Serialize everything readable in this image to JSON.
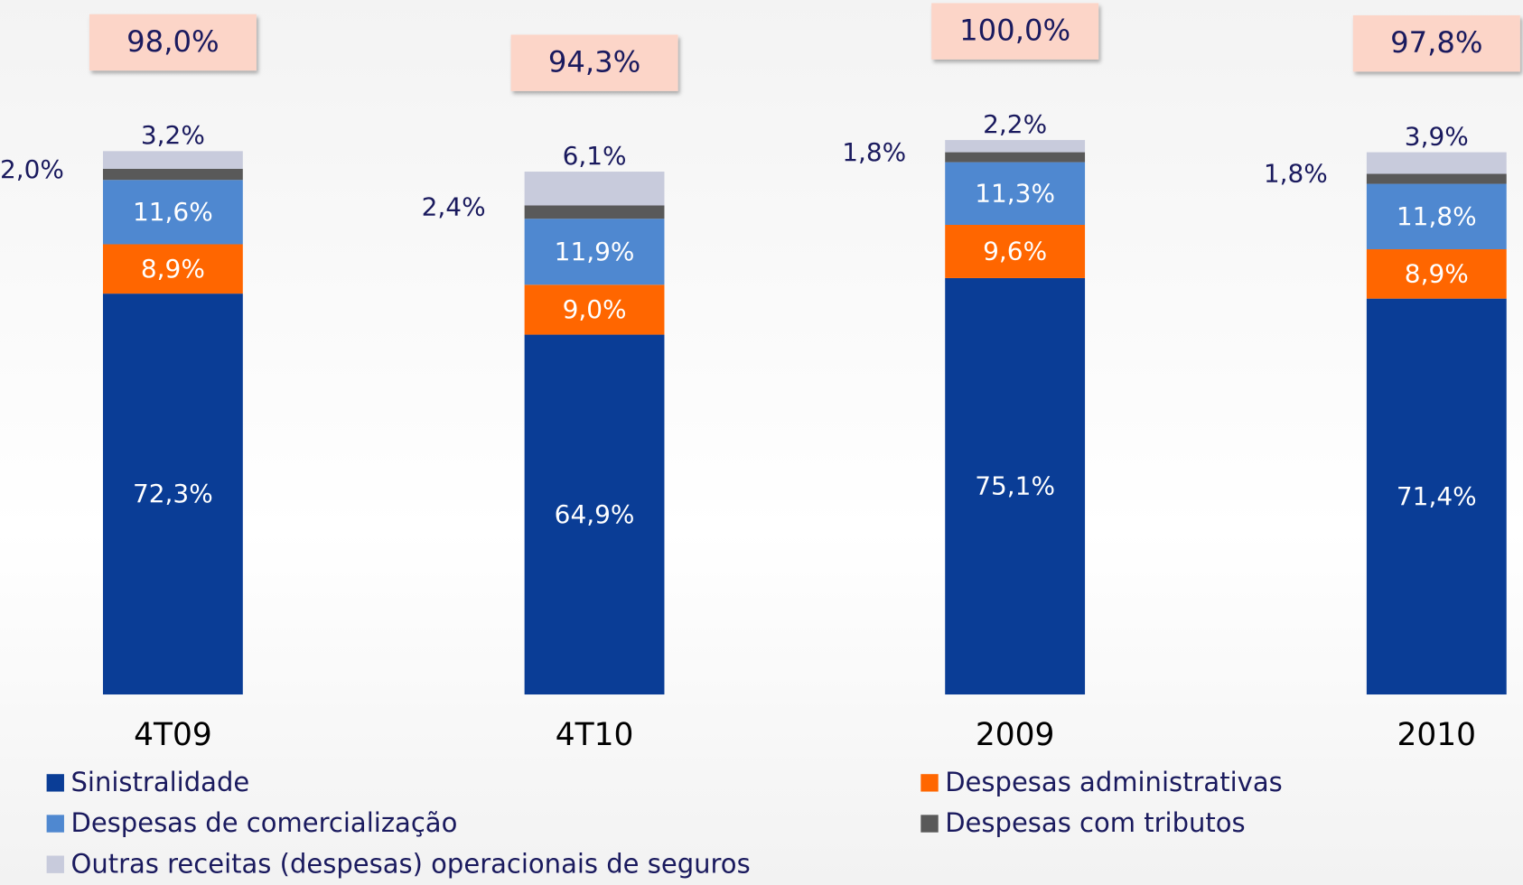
{
  "chart_data": {
    "type": "stacked_bar",
    "categories": [
      "4T09",
      "4T10",
      "2009",
      "2010"
    ],
    "ylim": [
      0,
      125
    ],
    "series": [
      {
        "name": "Sinistralidade",
        "color": "#0a3d96",
        "values": [
          72.3,
          64.9,
          75.1,
          71.4
        ],
        "value_labels": [
          "72,3%",
          "64,9%",
          "75,1%",
          "71,4%"
        ]
      },
      {
        "name": "Despesas administrativas",
        "color": "#ff6600",
        "values": [
          8.9,
          9.0,
          9.6,
          8.9
        ],
        "value_labels": [
          "8,9%",
          "9,0%",
          "9,6%",
          "8,9%"
        ]
      },
      {
        "name": "Despesas de comercialização",
        "color": "#4f88d0",
        "values": [
          11.6,
          11.9,
          11.3,
          11.8
        ],
        "value_labels": [
          "11,6%",
          "11,9%",
          "11,3%",
          "11,8%"
        ]
      },
      {
        "name": "Despesas com tributos",
        "color": "#595959",
        "values": [
          2.0,
          2.4,
          1.8,
          1.8
        ],
        "value_labels": [
          "2,0%",
          "2,4%",
          "1,8%",
          "1,8%"
        ]
      },
      {
        "name": "Outras receitas (despesas) operacionais de seguros",
        "color": "#c8cbdc",
        "values": [
          3.2,
          6.1,
          2.2,
          3.9
        ],
        "value_labels": [
          "3,2%",
          "6,1%",
          "2,2%",
          "3,9%"
        ]
      }
    ],
    "totals": [
      98.0,
      94.3,
      100.0,
      97.8
    ],
    "total_labels": [
      "98,0%",
      "94,3%",
      "100,0%",
      "97,8%"
    ]
  }
}
